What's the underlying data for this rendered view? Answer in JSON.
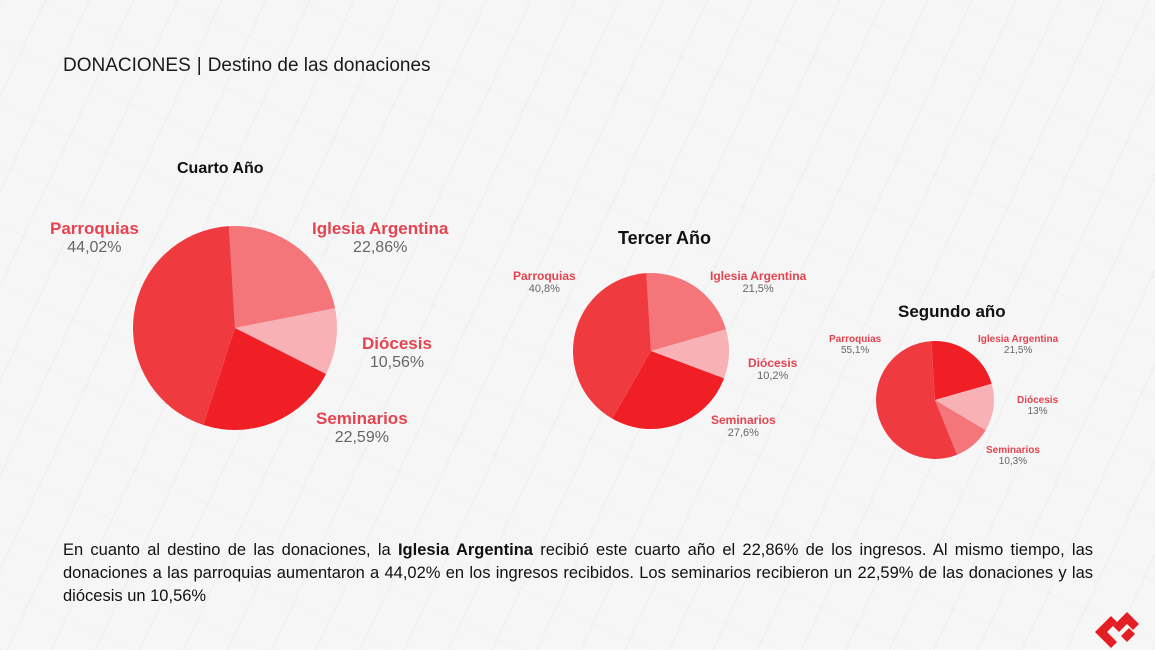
{
  "header": {
    "title_main": "DONACIONES",
    "title_separator": "|",
    "title_sub": "Destino de las donaciones"
  },
  "chart_data": [
    {
      "type": "pie",
      "title": "Cuarto Año",
      "categories": [
        "Parroquias",
        "Iglesia Argentina",
        "Diócesis",
        "Seminarios"
      ],
      "values": [
        44.02,
        22.86,
        10.56,
        22.59
      ],
      "value_labels": [
        "44,02%",
        "22,86%",
        "10,56%",
        "22,59%"
      ],
      "colors": [
        "#ef3b40",
        "#f4767b",
        "#f8b2b5",
        "#f01e25"
      ]
    },
    {
      "type": "pie",
      "title": "Tercer Año",
      "categories": [
        "Parroquias",
        "Iglesia Argentina",
        "Diócesis",
        "Seminarios"
      ],
      "values": [
        40.8,
        21.5,
        10.2,
        27.6
      ],
      "value_labels": [
        "40,8%",
        "21,5%",
        "10,2%",
        "27,6%"
      ],
      "colors": [
        "#ef3b40",
        "#f4767b",
        "#f8b2b5",
        "#f01e25"
      ]
    },
    {
      "type": "pie",
      "title": "Segundo año",
      "categories": [
        "Parroquias",
        "Iglesia Argentina",
        "Diócesis",
        "Seminarios"
      ],
      "values": [
        55.1,
        21.5,
        13,
        10.3
      ],
      "value_labels": [
        "55,1%",
        "21,5%",
        "13%",
        "10,3%"
      ],
      "colors": [
        "#ef3b40",
        "#f01e25",
        "#f8b2b5",
        "#f4767b"
      ]
    }
  ],
  "body": {
    "p1": "En cuanto al destino de las donaciones, la ",
    "bold": "Iglesia Argentina",
    "p2": " recibió este cuarto año el 22,86% de los ingresos. Al mismo tiempo, las donaciones a las parroquias aumentaron a 44,02% en los ingresos recibidos. Los seminarios recibieron un 22,59% de las donaciones y las diócesis un 10,56%"
  },
  "logo": {
    "name": "brand-logo",
    "color": "#e31e24"
  }
}
